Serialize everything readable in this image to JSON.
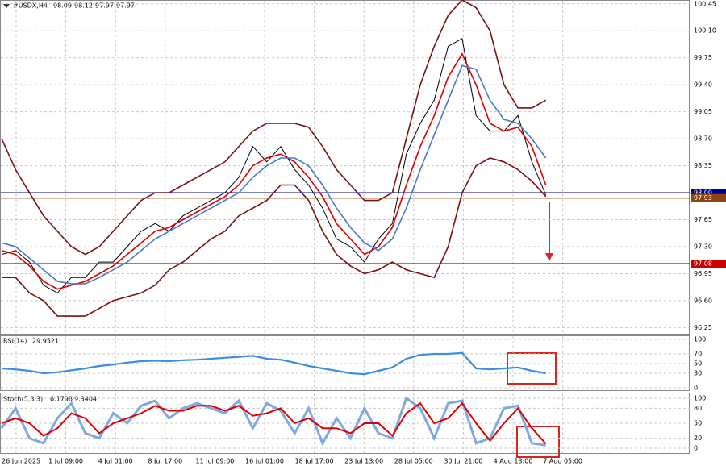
{
  "chart_data": {
    "type": "line",
    "header": {
      "symbol": "#USDX,H4",
      "ohlc": [
        98.09,
        98.12,
        97.97,
        97.97
      ]
    },
    "ylim": [
      96.16,
      100.5
    ],
    "yticks": [
      100.45,
      {
        "value": 100.1,
        "label": "100.10"
      },
      99.75,
      {
        "value": 99.4,
        "label": "99.40"
      },
      99.05,
      {
        "value": 98.7,
        "label": "98.70"
      },
      98.35,
      {
        "value": 98,
        "label": "98.00"
      },
      97.65,
      {
        "value": 97.3,
        "label": "97.30"
      },
      96.95,
      {
        "value": 96.6,
        "label": "96.60"
      },
      96.25
    ],
    "grid": true,
    "xtick_labels": [
      "26 Jun 2025",
      "1 Jul 09:00",
      "4 Jul 01:00",
      "8 Jul 17:00",
      "11 Jul 09:00",
      "16 Jul 01:00",
      "18 Jul 17:00",
      "23 Jul 13:00",
      "28 Jul 05:00",
      "30 Jul 21:00",
      "4 Aug 13:00",
      "7 Aug 05:00"
    ],
    "levels": [
      {
        "value": 98,
        "label": "98.00",
        "color": "#00008b"
      },
      {
        "value": 97.93,
        "label": "97.93",
        "color": "#8b4513"
      },
      {
        "value": 97.08,
        "label": "97.08",
        "color": "#cc0000"
      }
    ],
    "series": [
      {
        "color": "#000000",
        "values": [
          97.2,
          97.25,
          97.1,
          96.8,
          96.7,
          96.9,
          96.9,
          97.1,
          97.1,
          97.3,
          97.5,
          97.6,
          97.5,
          97.7,
          97.8,
          97.9,
          98.0,
          98.2,
          98.6,
          98.4,
          98.6,
          98.3,
          98.1,
          97.8,
          97.4,
          97.3,
          97.1,
          97.4,
          97.6,
          98.5,
          98.9,
          99.2,
          99.9,
          100.0,
          99.0,
          98.8,
          98.8,
          99.0,
          98.4,
          97.97
        ]
      },
      {
        "color": "#dd0000",
        "values": [
          97.25,
          97.2,
          97.05,
          96.85,
          96.75,
          96.8,
          96.85,
          96.95,
          97.05,
          97.2,
          97.35,
          97.5,
          97.55,
          97.65,
          97.75,
          97.85,
          97.95,
          98.1,
          98.35,
          98.45,
          98.5,
          98.4,
          98.2,
          97.95,
          97.6,
          97.4,
          97.2,
          97.3,
          97.55,
          98.1,
          98.6,
          99.0,
          99.5,
          99.8,
          99.4,
          98.9,
          98.8,
          98.85,
          98.6,
          98.1
        ]
      },
      {
        "color": "#4a78c8",
        "values": [
          97.35,
          97.3,
          97.15,
          97.0,
          96.85,
          96.82,
          96.82,
          96.9,
          97.0,
          97.1,
          97.25,
          97.4,
          97.5,
          97.6,
          97.7,
          97.8,
          97.9,
          98.0,
          98.2,
          98.35,
          98.45,
          98.45,
          98.35,
          98.1,
          97.8,
          97.55,
          97.35,
          97.25,
          97.4,
          97.8,
          98.3,
          98.75,
          99.2,
          99.65,
          99.6,
          99.2,
          98.95,
          98.9,
          98.7,
          98.45
        ]
      },
      {
        "color": "#7a1010",
        "values": [
          98.7,
          98.3,
          98.0,
          97.7,
          97.5,
          97.3,
          97.2,
          97.3,
          97.5,
          97.7,
          97.9,
          98.0,
          98.0,
          98.1,
          98.2,
          98.3,
          98.4,
          98.6,
          98.8,
          98.9,
          98.9,
          98.9,
          98.85,
          98.6,
          98.3,
          98.1,
          97.9,
          97.9,
          98.0,
          98.7,
          99.4,
          99.9,
          100.3,
          100.5,
          100.4,
          100.1,
          99.4,
          99.1,
          99.1,
          99.2
        ]
      },
      {
        "color": "#7a1010",
        "values": [
          96.9,
          96.9,
          96.7,
          96.6,
          96.4,
          96.4,
          96.4,
          96.5,
          96.6,
          96.65,
          96.7,
          96.8,
          97.0,
          97.1,
          97.25,
          97.4,
          97.5,
          97.7,
          97.8,
          97.9,
          98.1,
          98.1,
          97.9,
          97.5,
          97.2,
          97.05,
          96.95,
          97.0,
          97.1,
          97.0,
          96.95,
          96.9,
          97.3,
          98.0,
          98.35,
          98.45,
          98.4,
          98.3,
          98.15,
          97.95
        ]
      }
    ],
    "rsi": {
      "label": "RSI(14)",
      "value": 29.9521,
      "ylim": [
        0,
        100
      ],
      "yticks": [
        100,
        70,
        50,
        30,
        0
      ],
      "color": "#3b8fe0",
      "values": [
        40,
        38,
        35,
        30,
        32,
        36,
        40,
        45,
        48,
        52,
        55,
        56,
        55,
        57,
        58,
        60,
        62,
        64,
        66,
        60,
        58,
        52,
        45,
        40,
        35,
        30,
        28,
        35,
        42,
        60,
        68,
        70,
        70,
        72,
        40,
        38,
        40,
        42,
        35,
        30
      ]
    },
    "stoch": {
      "label": "Stoch(5,3,3)",
      "main": 6.1798,
      "signal": 9.3404,
      "ylim": [
        0,
        100
      ],
      "yticks": [
        100,
        80,
        50,
        20,
        0
      ],
      "series": [
        {
          "color": "#7fa8e0",
          "values": [
            40,
            80,
            20,
            10,
            60,
            90,
            30,
            20,
            70,
            50,
            85,
            95,
            60,
            80,
            90,
            80,
            70,
            95,
            40,
            90,
            75,
            30,
            80,
            10,
            60,
            20,
            80,
            30,
            20,
            100,
            80,
            20,
            90,
            95,
            10,
            20,
            80,
            85,
            10,
            6
          ]
        },
        {
          "color": "#dd0000",
          "values": [
            50,
            60,
            50,
            25,
            40,
            70,
            60,
            30,
            50,
            60,
            70,
            85,
            75,
            75,
            85,
            85,
            75,
            85,
            65,
            70,
            80,
            50,
            60,
            40,
            40,
            30,
            50,
            50,
            25,
            70,
            90,
            50,
            60,
            90,
            50,
            15,
            50,
            80,
            40,
            9
          ]
        }
      ]
    }
  }
}
